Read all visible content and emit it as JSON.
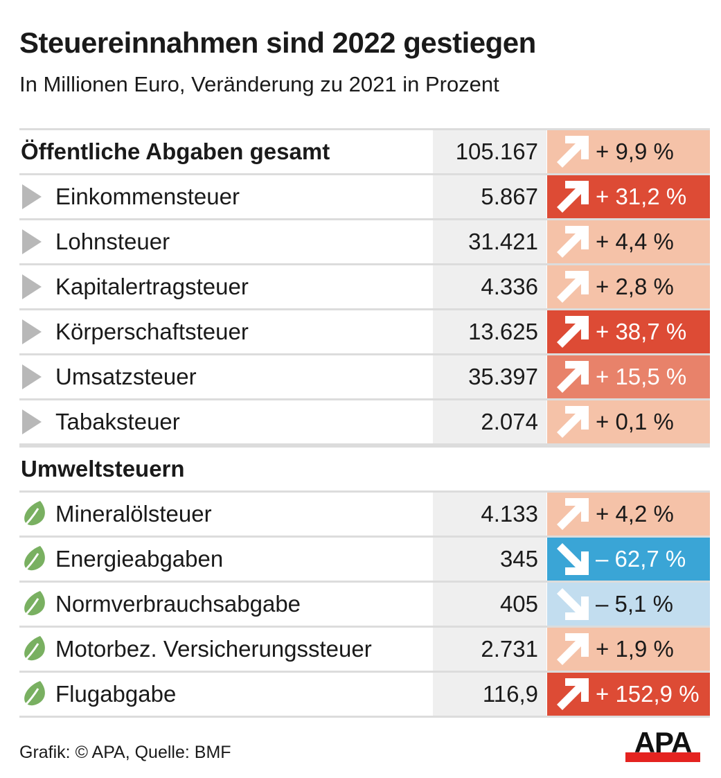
{
  "chart_data": {
    "type": "table",
    "title": "Steuereinnahmen sind 2022 gestiegen",
    "subtitle": "In Millionen Euro, Veränderung zu 2021 in Prozent",
    "columns": [
      "Steuer",
      "Millionen Euro",
      "Veränderung zu 2021"
    ],
    "total": {
      "label": "Öffentliche Abgaben gesamt",
      "value": "105.167",
      "change": "+ 9,9 %",
      "change_num": 9.9,
      "direction": "up",
      "level": "light"
    },
    "groups": [
      {
        "name": "",
        "icon": "triangle-bullet-icon",
        "rows": [
          {
            "label": "Einkommensteuer",
            "value": "5.867",
            "change": "+ 31,2 %",
            "change_num": 31.2,
            "direction": "up",
            "level": "strong"
          },
          {
            "label": "Lohnsteuer",
            "value": "31.421",
            "change": "+ 4,4 %",
            "change_num": 4.4,
            "direction": "up",
            "level": "light"
          },
          {
            "label": "Kapitalertragsteuer",
            "value": "4.336",
            "change": "+ 2,8 %",
            "change_num": 2.8,
            "direction": "up",
            "level": "light"
          },
          {
            "label": "Körperschaftsteuer",
            "value": "13.625",
            "change": "+ 38,7 %",
            "change_num": 38.7,
            "direction": "up",
            "level": "strong"
          },
          {
            "label": "Umsatzsteuer",
            "value": "35.397",
            "change": "+ 15,5 %",
            "change_num": 15.5,
            "direction": "up",
            "level": "medium"
          },
          {
            "label": "Tabaksteuer",
            "value": "2.074",
            "change": "+ 0,1 %",
            "change_num": 0.1,
            "direction": "up",
            "level": "light"
          }
        ]
      },
      {
        "name": "Umweltsteuern",
        "icon": "leaf-icon",
        "rows": [
          {
            "label": "Mineralölsteuer",
            "value": "4.133",
            "change": "+ 4,2 %",
            "change_num": 4.2,
            "direction": "up",
            "level": "light"
          },
          {
            "label": "Energieabgaben",
            "value": "345",
            "change": "– 62,7 %",
            "change_num": -62.7,
            "direction": "down",
            "level": "strong"
          },
          {
            "label": "Normverbrauchsabgabe",
            "value": "405",
            "change": "– 5,1 %",
            "change_num": -5.1,
            "direction": "down",
            "level": "light"
          },
          {
            "label": "Motorbez. Versicherungssteuer",
            "value": "2.731",
            "change": "+ 1,9 %",
            "change_num": 1.9,
            "direction": "up",
            "level": "light"
          },
          {
            "label": "Flugabgabe",
            "value": "116,9",
            "change": "+ 152,9 %",
            "change_num": 152.9,
            "direction": "up",
            "level": "strong"
          }
        ]
      }
    ]
  },
  "colors": {
    "up_light": "#f5c2a8",
    "up_medium": "#e8826a",
    "up_strong": "#dd4b35",
    "down_light": "#c2ddef",
    "down_strong": "#3aa5d6",
    "value_bg": "#efefef",
    "bullet": "#b8b8b8",
    "leaf": "#79b061",
    "logo_red": "#e42320"
  },
  "footer": {
    "credit": "Grafik: © APA, Quelle: BMF",
    "logo": "APA"
  }
}
